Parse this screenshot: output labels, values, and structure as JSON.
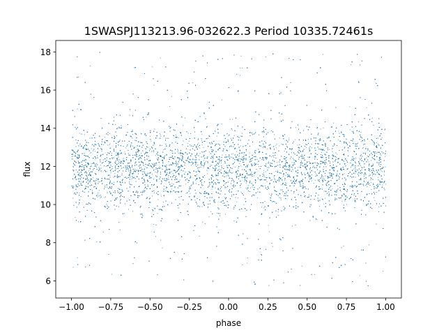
{
  "chart_data": {
    "type": "scatter",
    "title": "1SWASPJ113213.96-032622.3 Period 10335.72461s",
    "xlabel": "phase",
    "ylabel": "flux",
    "xlim": [
      -1.1,
      1.1
    ],
    "ylim": [
      5.1,
      18.6
    ],
    "xticks": [
      -1.0,
      -0.75,
      -0.5,
      -0.25,
      0.0,
      0.25,
      0.5,
      0.75,
      1.0
    ],
    "xtick_labels": [
      "−1.00",
      "−0.75",
      "−0.50",
      "−0.25",
      "0.00",
      "0.25",
      "0.50",
      "0.75",
      "1.00"
    ],
    "yticks": [
      6,
      8,
      10,
      12,
      14,
      16,
      18
    ],
    "ytick_labels": [
      "6",
      "8",
      "10",
      "12",
      "14",
      "16",
      "18"
    ],
    "grid": false,
    "series": [
      {
        "color": "#1f77b4",
        "x_range": [
          -1.0,
          1.0
        ],
        "y_range": [
          5.7,
          18.0
        ],
        "y_center": 11.9,
        "y_dense_band": [
          10.0,
          13.5
        ],
        "outer_fraction": 0.1
      }
    ]
  }
}
